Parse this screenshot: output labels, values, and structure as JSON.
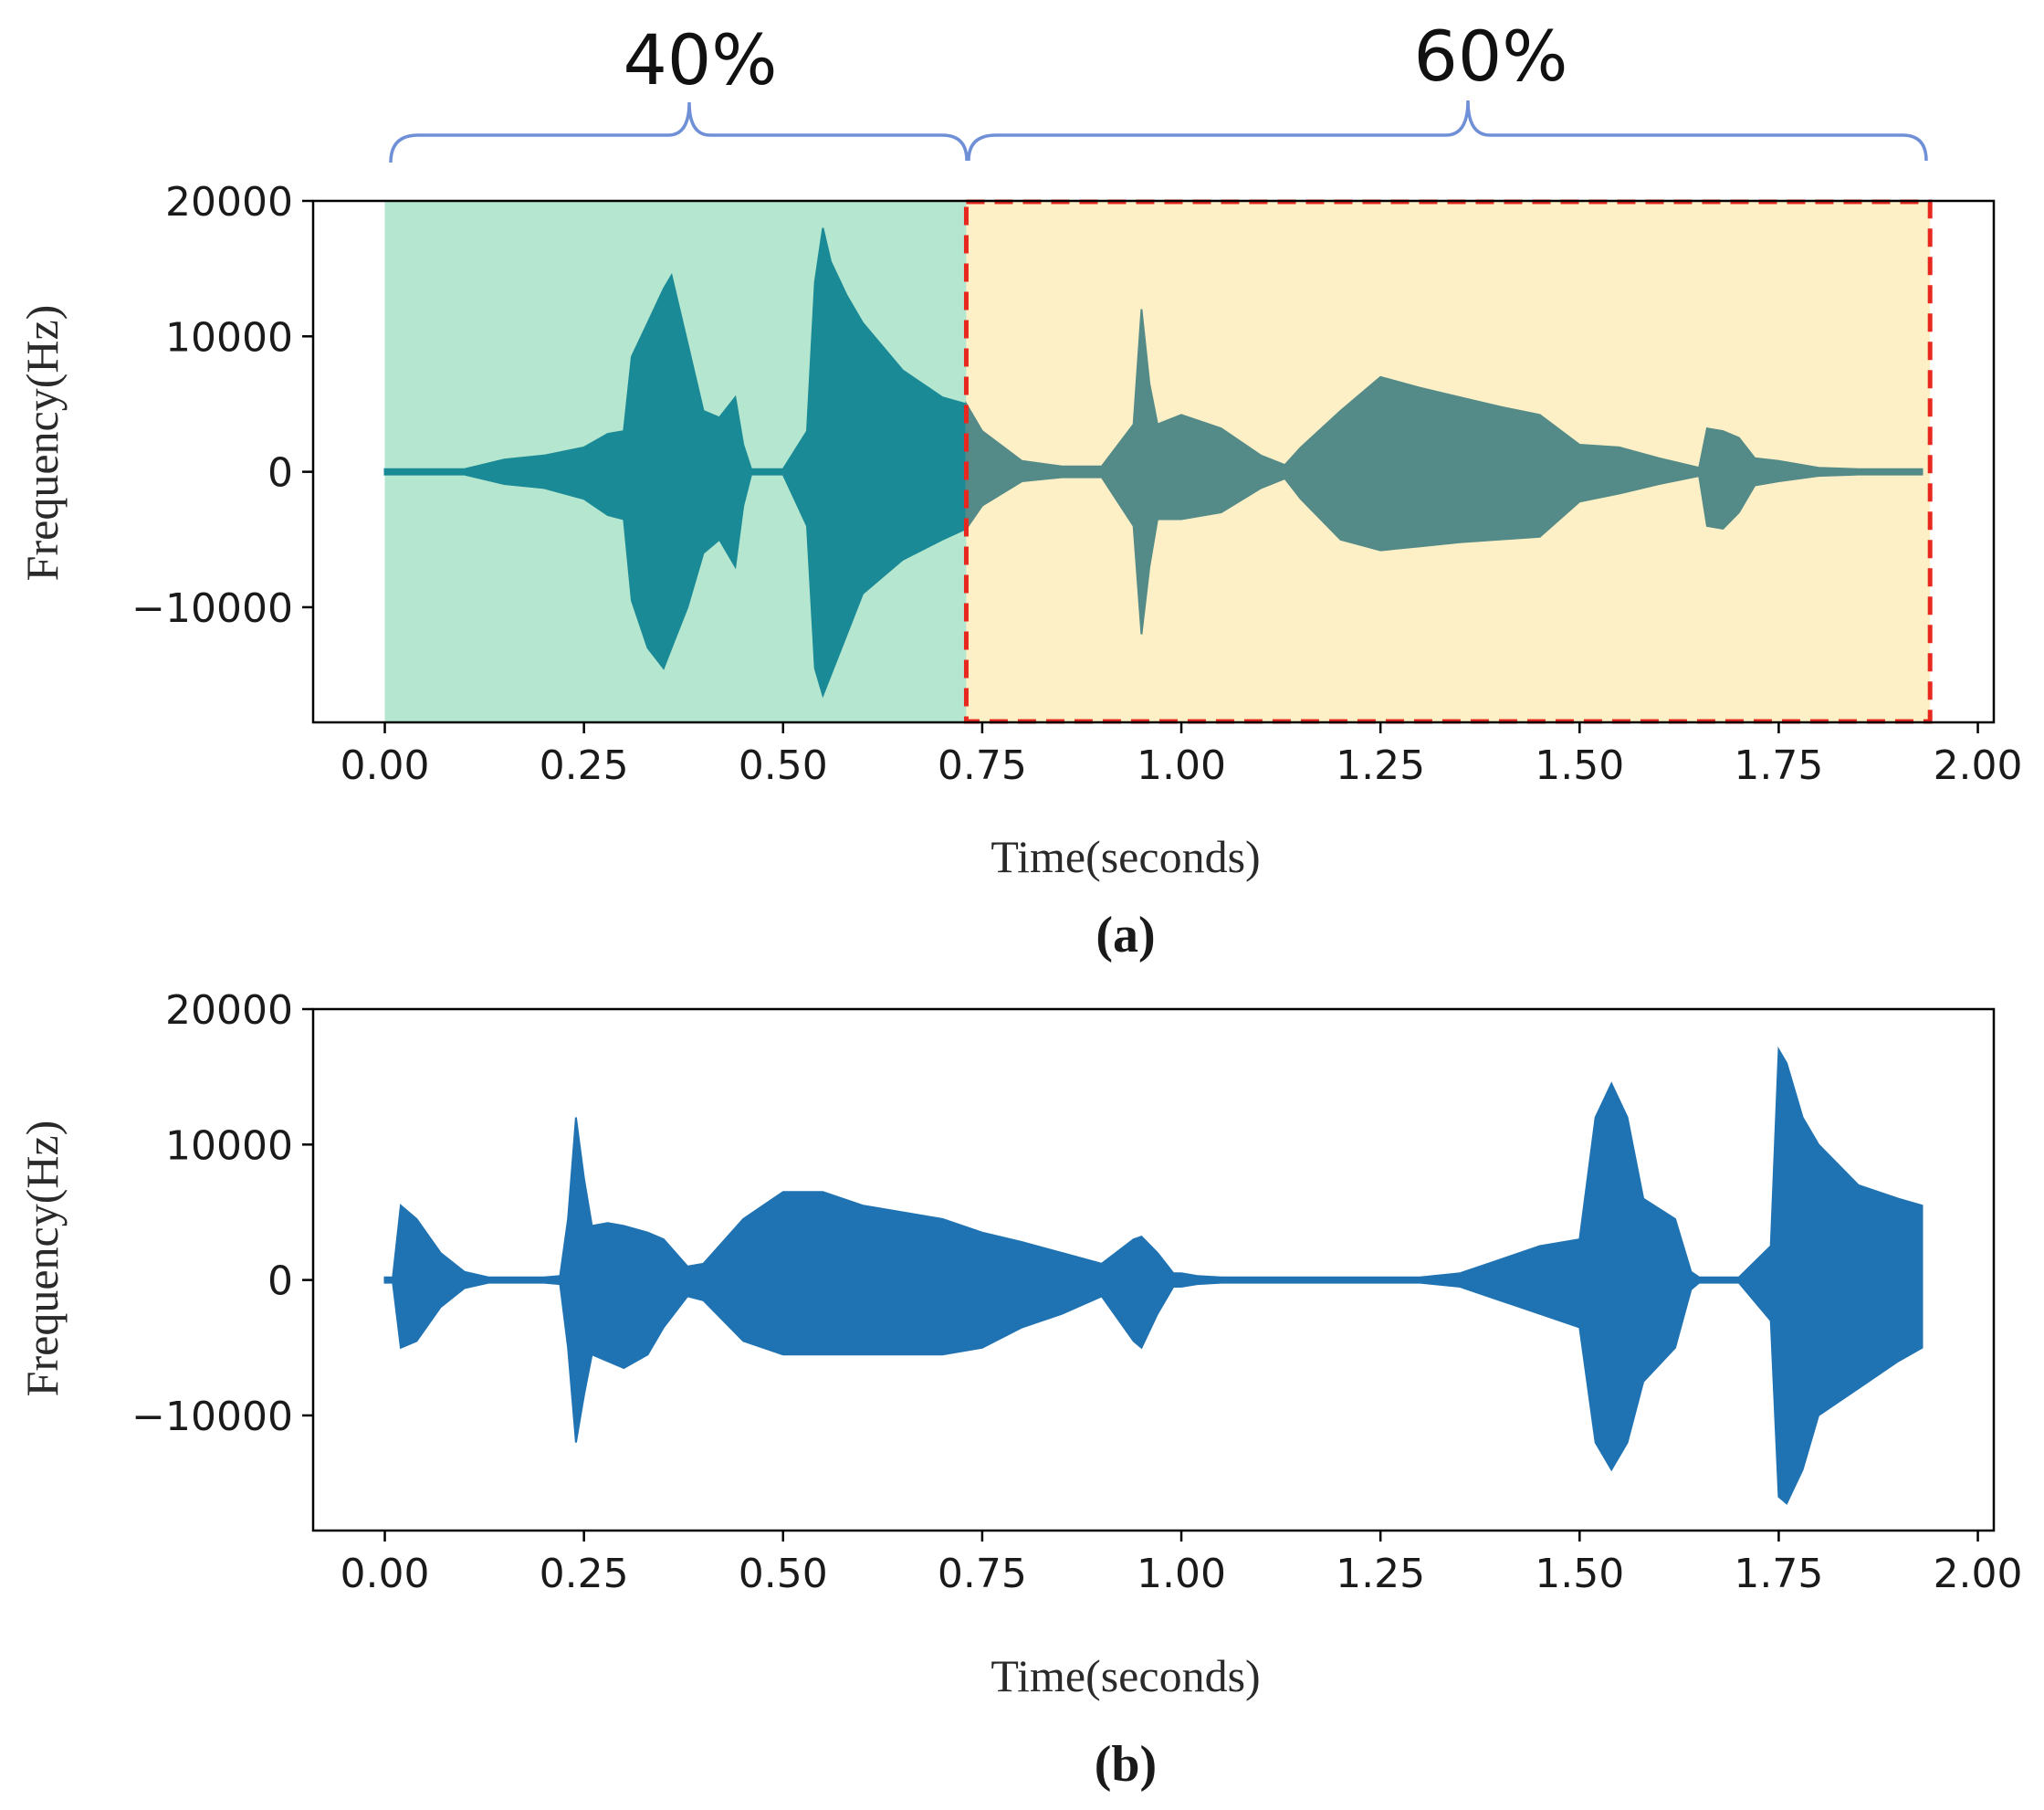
{
  "figure": {
    "panel_a_caption": "(a)",
    "panel_b_caption": "(b)",
    "segment_left_label": "40%",
    "segment_right_label": "60%"
  },
  "colors": {
    "waveform_a": "#1a8a96",
    "waveform_a_over_yellow": "#548a87",
    "waveform_b": "#2073b3",
    "shade_left": "#b5e6cf",
    "shade_right": "#fdf0c6",
    "dashed_box": "#e8271f",
    "brace": "#6f8fd6"
  },
  "chart_data": [
    {
      "type": "area",
      "panel": "a",
      "title": "",
      "xlabel": "Time(seconds)",
      "ylabel": "Frequency(Hz)",
      "xlim": [
        -0.09,
        2.02
      ],
      "ylim": [
        -18500,
        20000
      ],
      "xticks": [
        "0.00",
        "0.25",
        "0.50",
        "0.75",
        "1.00",
        "1.25",
        "1.50",
        "1.75",
        "2.00"
      ],
      "yticks": [
        "20000",
        "10000",
        "0",
        "−10000"
      ],
      "ytick_values": [
        20000,
        10000,
        0,
        -10000
      ],
      "segments": [
        {
          "label": "40%",
          "x_start": 0.0,
          "x_end": 0.73,
          "shade": "green"
        },
        {
          "label": "60%",
          "x_start": 0.73,
          "x_end": 1.94,
          "shade": "yellow",
          "dashed_outline": true
        }
      ],
      "envelope": {
        "t": [
          0.0,
          0.05,
          0.1,
          0.15,
          0.2,
          0.25,
          0.28,
          0.3,
          0.31,
          0.33,
          0.35,
          0.36,
          0.38,
          0.4,
          0.42,
          0.44,
          0.45,
          0.46,
          0.5,
          0.53,
          0.54,
          0.55,
          0.56,
          0.58,
          0.6,
          0.65,
          0.7,
          0.73,
          0.75,
          0.8,
          0.85,
          0.9,
          0.94,
          0.95,
          0.96,
          0.97,
          1.0,
          1.05,
          1.1,
          1.13,
          1.15,
          1.2,
          1.25,
          1.3,
          1.35,
          1.4,
          1.45,
          1.5,
          1.55,
          1.6,
          1.65,
          1.66,
          1.68,
          1.7,
          1.72,
          1.75,
          1.8,
          1.85,
          1.9,
          1.93
        ],
        "upper": [
          200,
          200,
          200,
          900,
          1200,
          1800,
          2800,
          3000,
          8500,
          11000,
          13500,
          14500,
          9500,
          4500,
          4000,
          5500,
          2000,
          200,
          200,
          3000,
          14000,
          18000,
          15500,
          13000,
          11000,
          7500,
          5500,
          5000,
          3000,
          800,
          400,
          400,
          3500,
          12000,
          6500,
          3500,
          4200,
          3200,
          1200,
          500,
          1800,
          4500,
          7000,
          6200,
          5500,
          4800,
          4200,
          2000,
          1800,
          1000,
          300,
          3200,
          3000,
          2500,
          1000,
          800,
          300,
          200,
          200,
          200
        ],
        "lower": [
          -200,
          -200,
          -200,
          -900,
          -1200,
          -2000,
          -3200,
          -3500,
          -9500,
          -13000,
          -14500,
          -13000,
          -10000,
          -6000,
          -5000,
          -7000,
          -2500,
          -200,
          -200,
          -4000,
          -14500,
          -16500,
          -15000,
          -12000,
          -9000,
          -6500,
          -5000,
          -4200,
          -2500,
          -700,
          -400,
          -400,
          -4000,
          -12000,
          -7000,
          -3500,
          -3500,
          -3000,
          -1200,
          -500,
          -2000,
          -5000,
          -5800,
          -5500,
          -5200,
          -5000,
          -4800,
          -2200,
          -1600,
          -900,
          -300,
          -4000,
          -4200,
          -3000,
          -1000,
          -700,
          -300,
          -200,
          -200,
          -200
        ]
      }
    },
    {
      "type": "area",
      "panel": "b",
      "title": "",
      "xlabel": "Time(seconds)",
      "ylabel": "Frequency(Hz)",
      "xlim": [
        -0.09,
        2.02
      ],
      "ylim": [
        -18500,
        20000
      ],
      "xticks": [
        "0.00",
        "0.25",
        "0.50",
        "0.75",
        "1.00",
        "1.25",
        "1.50",
        "1.75",
        "2.00"
      ],
      "yticks": [
        "20000",
        "10000",
        "0",
        "−10000"
      ],
      "ytick_values": [
        20000,
        10000,
        0,
        -10000
      ],
      "envelope": {
        "t": [
          0.0,
          0.01,
          0.02,
          0.04,
          0.07,
          0.1,
          0.13,
          0.2,
          0.22,
          0.23,
          0.24,
          0.25,
          0.26,
          0.28,
          0.3,
          0.33,
          0.35,
          0.38,
          0.4,
          0.45,
          0.5,
          0.55,
          0.6,
          0.65,
          0.7,
          0.75,
          0.8,
          0.85,
          0.9,
          0.94,
          0.95,
          0.97,
          0.99,
          1.0,
          1.02,
          1.05,
          1.1,
          1.2,
          1.3,
          1.35,
          1.4,
          1.45,
          1.5,
          1.52,
          1.54,
          1.56,
          1.58,
          1.62,
          1.64,
          1.65,
          1.66,
          1.7,
          1.74,
          1.75,
          1.76,
          1.78,
          1.8,
          1.85,
          1.9,
          1.93
        ],
        "upper": [
          200,
          200,
          5500,
          4500,
          2000,
          600,
          200,
          200,
          300,
          4500,
          12000,
          7500,
          4000,
          4200,
          4000,
          3500,
          3000,
          1000,
          1200,
          4500,
          6500,
          6500,
          5500,
          5000,
          4500,
          3500,
          2800,
          2000,
          1200,
          3000,
          3200,
          2000,
          500,
          500,
          300,
          200,
          200,
          200,
          200,
          500,
          1500,
          2500,
          3000,
          12000,
          14500,
          12000,
          6000,
          4500,
          600,
          200,
          200,
          200,
          2500,
          17000,
          16000,
          12000,
          10000,
          7000,
          6000,
          5500
        ],
        "lower": [
          -200,
          -200,
          -5000,
          -4500,
          -2000,
          -600,
          -200,
          -200,
          -300,
          -5000,
          -12000,
          -8500,
          -5500,
          -6000,
          -6500,
          -5500,
          -3500,
          -1200,
          -1500,
          -4500,
          -5500,
          -5500,
          -5500,
          -5500,
          -5500,
          -5000,
          -3500,
          -2500,
          -1200,
          -4500,
          -5000,
          -2500,
          -500,
          -500,
          -300,
          -200,
          -200,
          -200,
          -200,
          -500,
          -1500,
          -2500,
          -3500,
          -12000,
          -14000,
          -12000,
          -7500,
          -5000,
          -700,
          -200,
          -200,
          -200,
          -3000,
          -16000,
          -16500,
          -14000,
          -10000,
          -8000,
          -6000,
          -5000
        ]
      }
    }
  ]
}
